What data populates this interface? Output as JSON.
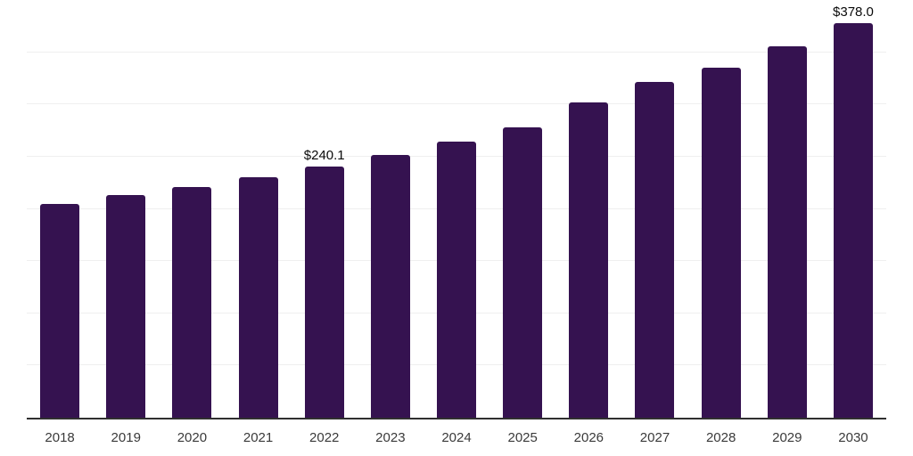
{
  "chart_data": {
    "type": "bar",
    "title": "",
    "xlabel": "",
    "ylabel": "",
    "categories": [
      "2018",
      "2019",
      "2020",
      "2021",
      "2022",
      "2023",
      "2024",
      "2025",
      "2026",
      "2027",
      "2028",
      "2029",
      "2030"
    ],
    "values": [
      204.5,
      213.0,
      221.0,
      230.1,
      240.1,
      251.2,
      264.2,
      278.4,
      301.7,
      321.5,
      334.8,
      356.0,
      378.0
    ],
    "value_labels": [
      "",
      "",
      "",
      "",
      "$240.1",
      "",
      "",
      "",
      "",
      "",
      "",
      "",
      "$378.0"
    ],
    "ylim": [
      0,
      400
    ],
    "gridline_step": 50,
    "grid_visible": true,
    "legend": "none",
    "colors": {
      "bar": "#351250",
      "gridline": "#efefef",
      "axis_line": "#303030",
      "value_label": "#0a0a0a",
      "tick_label": "#3a3a3a",
      "background": "#ffffff"
    }
  }
}
